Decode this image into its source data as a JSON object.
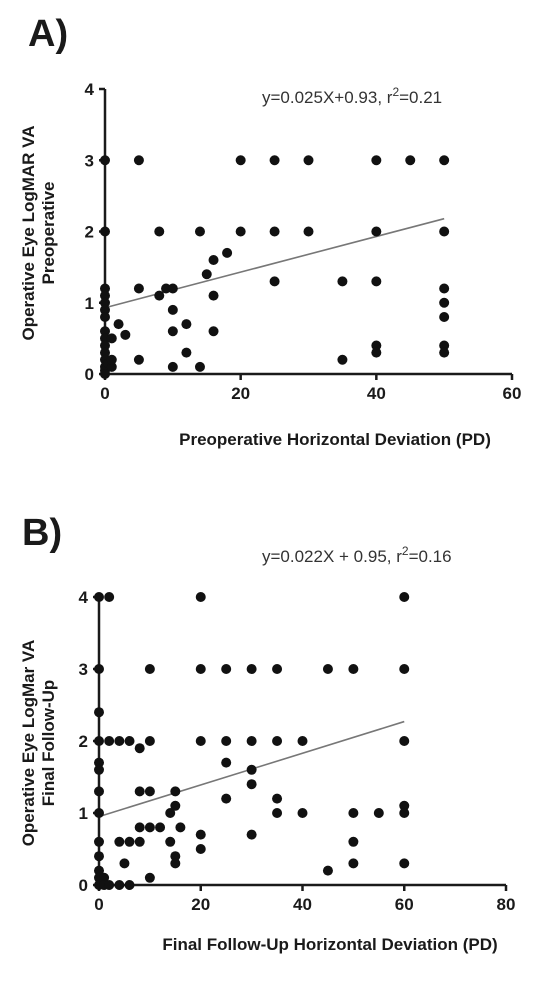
{
  "chart_data": [
    {
      "type": "scatter",
      "panel_label": "A)",
      "annotation": {
        "prefix": "y=0.025X+0.93, r",
        "sup": "2",
        "suffix": "=0.21"
      },
      "xlabel": "Preoperative Horizontal Deviation (PD)",
      "ylabel_lines": [
        "Operative Eye LogMAR VA",
        "Preoperative"
      ],
      "xlim": [
        0,
        60
      ],
      "ylim": [
        0,
        4
      ],
      "xticks": [
        0,
        20,
        40,
        60
      ],
      "yticks": [
        0,
        1,
        2,
        3,
        4
      ],
      "grid": false,
      "fit": {
        "slope": 0.025,
        "intercept": 0.93,
        "x_range": [
          0,
          50
        ]
      },
      "points": [
        [
          0,
          3
        ],
        [
          0,
          2
        ],
        [
          0,
          1.2
        ],
        [
          0,
          1.1
        ],
        [
          0,
          1.0
        ],
        [
          0,
          0.9
        ],
        [
          0,
          0.8
        ],
        [
          0,
          0.6
        ],
        [
          0,
          0.5
        ],
        [
          0,
          0.4
        ],
        [
          0,
          0.3
        ],
        [
          0,
          0.2
        ],
        [
          0,
          0.1
        ],
        [
          0,
          0.05
        ],
        [
          0,
          0
        ],
        [
          0.5,
          0.15
        ],
        [
          1,
          0.1
        ],
        [
          1,
          0.2
        ],
        [
          1,
          0.5
        ],
        [
          2,
          0.7
        ],
        [
          3,
          0.55
        ],
        [
          5,
          3
        ],
        [
          5,
          1.2
        ],
        [
          5,
          0.2
        ],
        [
          8,
          2
        ],
        [
          8,
          1.1
        ],
        [
          9,
          1.2
        ],
        [
          10,
          1.2
        ],
        [
          10,
          0.9
        ],
        [
          10,
          0.6
        ],
        [
          10,
          0.1
        ],
        [
          12,
          0.7
        ],
        [
          12,
          0.3
        ],
        [
          14,
          2
        ],
        [
          14,
          0.1
        ],
        [
          15,
          1.4
        ],
        [
          16,
          1.6
        ],
        [
          16,
          1.1
        ],
        [
          16,
          0.6
        ],
        [
          18,
          1.7
        ],
        [
          20,
          3
        ],
        [
          20,
          2
        ],
        [
          25,
          3
        ],
        [
          25,
          2
        ],
        [
          25,
          1.3
        ],
        [
          30,
          3
        ],
        [
          30,
          2
        ],
        [
          35,
          1.3
        ],
        [
          35,
          0.2
        ],
        [
          40,
          3
        ],
        [
          40,
          2
        ],
        [
          40,
          1.3
        ],
        [
          40,
          0.4
        ],
        [
          40,
          0.3
        ],
        [
          45,
          3
        ],
        [
          50,
          3
        ],
        [
          50,
          2
        ],
        [
          50,
          1.2
        ],
        [
          50,
          1.0
        ],
        [
          50,
          0.8
        ],
        [
          50,
          0.4
        ],
        [
          50,
          0.3
        ]
      ]
    },
    {
      "type": "scatter",
      "panel_label": "B)",
      "annotation": {
        "prefix": "y=0.022X + 0.95, r",
        "sup": "2",
        "suffix": "=0.16"
      },
      "xlabel": "Final Follow-Up Horizontal Deviation (PD)",
      "ylabel_lines": [
        "Operative Eye LogMar VA",
        "Final Follow-Up"
      ],
      "xlim": [
        0,
        80
      ],
      "ylim": [
        0,
        4
      ],
      "xticks": [
        0,
        20,
        40,
        60,
        80
      ],
      "yticks": [
        0,
        1,
        2,
        3,
        4
      ],
      "grid": false,
      "fit": {
        "slope": 0.022,
        "intercept": 0.95,
        "x_range": [
          0,
          60
        ]
      },
      "points": [
        [
          0,
          4
        ],
        [
          0,
          3
        ],
        [
          0,
          2.4
        ],
        [
          0,
          2
        ],
        [
          0,
          1.7
        ],
        [
          0,
          1.6
        ],
        [
          0,
          1.3
        ],
        [
          0,
          1
        ],
        [
          0,
          0.6
        ],
        [
          0,
          0.4
        ],
        [
          0,
          0.2
        ],
        [
          0,
          0.1
        ],
        [
          0,
          0
        ],
        [
          1,
          0.1
        ],
        [
          1,
          0
        ],
        [
          2,
          4
        ],
        [
          2,
          2
        ],
        [
          2,
          0
        ],
        [
          4,
          2
        ],
        [
          4,
          0.6
        ],
        [
          4,
          0
        ],
        [
          5,
          0.3
        ],
        [
          6,
          2
        ],
        [
          6,
          0.6
        ],
        [
          6,
          0
        ],
        [
          8,
          1.9
        ],
        [
          8,
          1.3
        ],
        [
          8,
          0.8
        ],
        [
          8,
          0.6
        ],
        [
          10,
          3
        ],
        [
          10,
          2
        ],
        [
          10,
          1.3
        ],
        [
          10,
          0.8
        ],
        [
          10,
          0.1
        ],
        [
          12,
          0.8
        ],
        [
          14,
          1
        ],
        [
          14,
          0.6
        ],
        [
          15,
          1.3
        ],
        [
          15,
          1.1
        ],
        [
          15,
          0.4
        ],
        [
          15,
          0.3
        ],
        [
          16,
          0.8
        ],
        [
          20,
          4
        ],
        [
          20,
          3
        ],
        [
          20,
          2
        ],
        [
          20,
          0.7
        ],
        [
          20,
          0.5
        ],
        [
          25,
          3
        ],
        [
          25,
          2
        ],
        [
          25,
          1.7
        ],
        [
          25,
          1.2
        ],
        [
          30,
          3
        ],
        [
          30,
          2
        ],
        [
          30,
          1.6
        ],
        [
          30,
          1.4
        ],
        [
          30,
          0.7
        ],
        [
          35,
          3
        ],
        [
          35,
          2
        ],
        [
          35,
          1.2
        ],
        [
          35,
          1
        ],
        [
          40,
          2
        ],
        [
          40,
          1
        ],
        [
          45,
          3
        ],
        [
          45,
          0.2
        ],
        [
          50,
          3
        ],
        [
          50,
          1
        ],
        [
          50,
          0.6
        ],
        [
          50,
          0.3
        ],
        [
          55,
          1
        ],
        [
          60,
          4
        ],
        [
          60,
          3
        ],
        [
          60,
          2
        ],
        [
          60,
          1.1
        ],
        [
          60,
          1
        ],
        [
          60,
          0.3
        ]
      ]
    }
  ]
}
